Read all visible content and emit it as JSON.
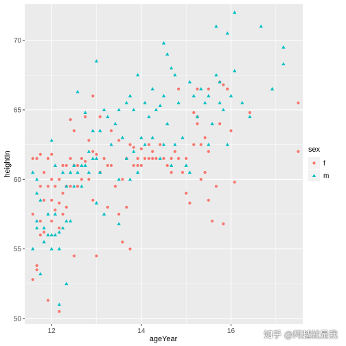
{
  "chart_data": {
    "type": "scatter",
    "xlabel": "ageYear",
    "ylabel": "heightIn",
    "xlim": [
      11.4,
      17.6
    ],
    "ylim": [
      49.6,
      72.6
    ],
    "x_ticks": [
      12,
      14,
      16
    ],
    "y_ticks": [
      50,
      55,
      60,
      65,
      70
    ],
    "grid": true,
    "legend": {
      "title": "sex",
      "position": "right"
    },
    "series": [
      {
        "name": "f",
        "color": "#F8766D",
        "marker": "circle",
        "points": [
          [
            11.58,
            61.5
          ],
          [
            11.58,
            57.5
          ],
          [
            11.58,
            52.8
          ],
          [
            11.67,
            53.8
          ],
          [
            11.67,
            53.5
          ],
          [
            11.67,
            61.5
          ],
          [
            11.75,
            61.8
          ],
          [
            11.75,
            59.5
          ],
          [
            11.75,
            57.0
          ],
          [
            11.75,
            56.0
          ],
          [
            11.83,
            60.5
          ],
          [
            11.83,
            58.5
          ],
          [
            11.83,
            56.2
          ],
          [
            11.92,
            61.5
          ],
          [
            11.92,
            59.5
          ],
          [
            11.92,
            51.3
          ],
          [
            12.0,
            61.8
          ],
          [
            12.0,
            60.0
          ],
          [
            12.0,
            58.5
          ],
          [
            12.0,
            57.0
          ],
          [
            12.08,
            59.5
          ],
          [
            12.08,
            57.8
          ],
          [
            12.17,
            60.0
          ],
          [
            12.17,
            58.3
          ],
          [
            12.17,
            56.5
          ],
          [
            12.17,
            50.5
          ],
          [
            12.25,
            61.0
          ],
          [
            12.25,
            59.0
          ],
          [
            12.25,
            57.5
          ],
          [
            12.33,
            61.0
          ],
          [
            12.33,
            59.5
          ],
          [
            12.33,
            58.0
          ],
          [
            12.42,
            64.3
          ],
          [
            12.42,
            61.5
          ],
          [
            12.42,
            59.5
          ],
          [
            12.5,
            63.5
          ],
          [
            12.5,
            61.0
          ],
          [
            12.5,
            54.5
          ],
          [
            12.58,
            61.0
          ],
          [
            12.58,
            59.5
          ],
          [
            12.67,
            61.5
          ],
          [
            12.67,
            60.0
          ],
          [
            12.75,
            64.5
          ],
          [
            12.75,
            61.3
          ],
          [
            12.83,
            62.8
          ],
          [
            12.83,
            60.0
          ],
          [
            12.92,
            66.0
          ],
          [
            12.92,
            62.0
          ],
          [
            12.92,
            58.5
          ],
          [
            13.0,
            61.8
          ],
          [
            13.0,
            54.5
          ],
          [
            13.08,
            64.5
          ],
          [
            13.08,
            60.5
          ],
          [
            13.17,
            61.5
          ],
          [
            13.25,
            61.0
          ],
          [
            13.25,
            58.0
          ],
          [
            13.33,
            63.5
          ],
          [
            13.33,
            61.0
          ],
          [
            13.42,
            59.5
          ],
          [
            13.5,
            62.8
          ],
          [
            13.5,
            57.5
          ],
          [
            13.58,
            60.0
          ],
          [
            13.58,
            55.5
          ],
          [
            13.67,
            61.5
          ],
          [
            13.67,
            58.0
          ],
          [
            13.75,
            62.5
          ],
          [
            13.75,
            55.0
          ],
          [
            13.83,
            61.0
          ],
          [
            13.83,
            62.3
          ],
          [
            13.92,
            61.5
          ],
          [
            13.92,
            61.0
          ],
          [
            14.0,
            62.2
          ],
          [
            14.0,
            61.0
          ],
          [
            14.08,
            61.5
          ],
          [
            14.17,
            61.5
          ],
          [
            14.17,
            62.5
          ],
          [
            14.25,
            62.0
          ],
          [
            14.25,
            61.5
          ],
          [
            14.33,
            61.5
          ],
          [
            14.42,
            62.5
          ],
          [
            14.5,
            61.5
          ],
          [
            14.58,
            61.0
          ],
          [
            14.67,
            61.5
          ],
          [
            14.67,
            60.5
          ],
          [
            14.75,
            62.0
          ],
          [
            14.83,
            66.5
          ],
          [
            14.83,
            61.5
          ],
          [
            14.92,
            60.5
          ],
          [
            15.0,
            59.0
          ],
          [
            15.0,
            61.5
          ],
          [
            15.08,
            58.3
          ],
          [
            15.17,
            62.5
          ],
          [
            15.17,
            64.8
          ],
          [
            15.25,
            66.5
          ],
          [
            15.25,
            64.5
          ],
          [
            15.25,
            64.0
          ],
          [
            15.33,
            60.0
          ],
          [
            15.33,
            62.5
          ],
          [
            15.42,
            60.5
          ],
          [
            15.42,
            63.0
          ],
          [
            15.5,
            66.5
          ],
          [
            15.5,
            62.0
          ],
          [
            15.5,
            58.5
          ],
          [
            15.58,
            57.0
          ],
          [
            15.67,
            59.5
          ],
          [
            15.75,
            67.0
          ],
          [
            15.75,
            64.0
          ],
          [
            15.83,
            66.8
          ],
          [
            15.83,
            56.8
          ],
          [
            15.92,
            66.5
          ],
          [
            16.0,
            63.5
          ],
          [
            16.08,
            59.8
          ],
          [
            16.42,
            64.8
          ],
          [
            17.5,
            65.5
          ],
          [
            17.5,
            62.0
          ]
        ]
      },
      {
        "name": "m",
        "color": "#00BFC4",
        "marker": "triangle",
        "points": [
          [
            11.58,
            55.0
          ],
          [
            11.58,
            60.5
          ],
          [
            11.67,
            60.0
          ],
          [
            11.67,
            59.0
          ],
          [
            11.67,
            57.0
          ],
          [
            11.67,
            56.5
          ],
          [
            11.75,
            58.5
          ],
          [
            11.75,
            53.2
          ],
          [
            11.83,
            56.5
          ],
          [
            11.83,
            55.5
          ],
          [
            11.92,
            57.5
          ],
          [
            11.92,
            56.0
          ],
          [
            12.0,
            62.8
          ],
          [
            12.0,
            56.0
          ],
          [
            12.0,
            55.0
          ],
          [
            12.08,
            61.0
          ],
          [
            12.08,
            57.5
          ],
          [
            12.08,
            56.0
          ],
          [
            12.17,
            56.2
          ],
          [
            12.17,
            55.0
          ],
          [
            12.17,
            51.0
          ],
          [
            12.25,
            60.5
          ],
          [
            12.25,
            56.5
          ],
          [
            12.33,
            59.5
          ],
          [
            12.33,
            57.0
          ],
          [
            12.33,
            52.5
          ],
          [
            12.42,
            60.5
          ],
          [
            12.42,
            57.0
          ],
          [
            12.5,
            61.0
          ],
          [
            12.5,
            59.5
          ],
          [
            12.58,
            66.3
          ],
          [
            12.58,
            60.5
          ],
          [
            12.67,
            61.0
          ],
          [
            12.67,
            59.5
          ],
          [
            12.75,
            64.8
          ],
          [
            12.75,
            61.0
          ],
          [
            12.83,
            60.5
          ],
          [
            12.83,
            62.0
          ],
          [
            12.92,
            63.5
          ],
          [
            12.92,
            61.5
          ],
          [
            13.0,
            68.5
          ],
          [
            13.0,
            61.5
          ],
          [
            13.0,
            58.3
          ],
          [
            13.08,
            63.5
          ],
          [
            13.08,
            60.5
          ],
          [
            13.17,
            65.0
          ],
          [
            13.17,
            57.5
          ],
          [
            13.25,
            64.5
          ],
          [
            13.33,
            62.5
          ],
          [
            13.42,
            64.0
          ],
          [
            13.5,
            65.0
          ],
          [
            13.5,
            60.0
          ],
          [
            13.5,
            56.8
          ],
          [
            13.58,
            63.0
          ],
          [
            13.67,
            61.5
          ],
          [
            13.67,
            65.5
          ],
          [
            13.75,
            66.0
          ],
          [
            13.75,
            60.0
          ],
          [
            13.83,
            65.0
          ],
          [
            13.83,
            62.0
          ],
          [
            13.92,
            67.5
          ],
          [
            13.92,
            60.5
          ],
          [
            14.0,
            63.0
          ],
          [
            14.08,
            65.5
          ],
          [
            14.08,
            62.5
          ],
          [
            14.17,
            64.5
          ],
          [
            14.25,
            66.5
          ],
          [
            14.25,
            63.0
          ],
          [
            14.33,
            65.0
          ],
          [
            14.42,
            65.3
          ],
          [
            14.42,
            61.5
          ],
          [
            14.5,
            69.8
          ],
          [
            14.5,
            66.0
          ],
          [
            14.5,
            62.5
          ],
          [
            14.58,
            69.0
          ],
          [
            14.58,
            64.0
          ],
          [
            14.67,
            68.0
          ],
          [
            14.67,
            61.0
          ],
          [
            14.75,
            67.5
          ],
          [
            14.75,
            62.5
          ],
          [
            14.83,
            65.5
          ],
          [
            14.92,
            63.0
          ],
          [
            15.0,
            61.0
          ],
          [
            15.08,
            67.0
          ],
          [
            15.08,
            60.5
          ],
          [
            15.17,
            66.0
          ],
          [
            15.25,
            64.5
          ],
          [
            15.33,
            66.5
          ],
          [
            15.42,
            65.5
          ],
          [
            15.5,
            66.0
          ],
          [
            15.5,
            62.5
          ],
          [
            15.58,
            64.0
          ],
          [
            15.67,
            71.0
          ],
          [
            15.67,
            67.5
          ],
          [
            15.75,
            67.0
          ],
          [
            15.75,
            65.5
          ],
          [
            15.83,
            65.0
          ],
          [
            15.92,
            70.5
          ],
          [
            15.92,
            62.5
          ],
          [
            16.0,
            66.0
          ],
          [
            16.08,
            72.0
          ],
          [
            16.08,
            67.8
          ],
          [
            16.25,
            65.5
          ],
          [
            16.42,
            64.5
          ],
          [
            16.67,
            71.0
          ],
          [
            16.92,
            66.5
          ],
          [
            17.17,
            69.5
          ],
          [
            17.17,
            68.3
          ]
        ]
      }
    ]
  },
  "watermark": "知乎 @阿越就是我"
}
